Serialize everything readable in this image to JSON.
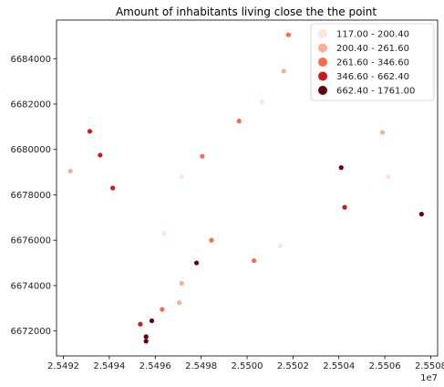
{
  "chart_data": {
    "type": "scatter",
    "title": "Amount of inhabitants living close the the point",
    "xlabel": "",
    "ylabel": "",
    "x_offset_label": "1e7",
    "x_scale": 10000000,
    "xlim": [
      25491700,
      25508300
    ],
    "ylim": [
      6670900,
      6685700
    ],
    "x_ticks": [
      25492000,
      25494000,
      25496000,
      25498000,
      25500000,
      25502000,
      25504000,
      25506000,
      25508000
    ],
    "x_tick_labels": [
      "2.5492",
      "2.5494",
      "2.5496",
      "2.5498",
      "2.5500",
      "2.5502",
      "2.5504",
      "2.5506",
      "2.5508"
    ],
    "y_ticks": [
      6672000,
      6674000,
      6676000,
      6678000,
      6680000,
      6682000,
      6684000
    ],
    "y_tick_labels": [
      "6672000",
      "6674000",
      "6676000",
      "6678000",
      "6680000",
      "6682000",
      "6684000"
    ],
    "grid": false,
    "legend_position": "top-right",
    "classes": [
      {
        "label": "117.00 - 200.40",
        "color": "#fee5d9"
      },
      {
        "label": "200.40 - 261.60",
        "color": "#fcae91"
      },
      {
        "label": "261.60 - 346.60",
        "color": "#fb6a4a"
      },
      {
        "label": "346.60 - 662.40",
        "color": "#cb181d"
      },
      {
        "label": "662.40 - 1761.00",
        "color": "#67000d"
      }
    ],
    "points": [
      {
        "x": 25492300,
        "y": 6679050,
        "cls": 1
      },
      {
        "x": 25493150,
        "y": 6680800,
        "cls": 3
      },
      {
        "x": 25493600,
        "y": 6679750,
        "cls": 3
      },
      {
        "x": 25494150,
        "y": 6678300,
        "cls": 3
      },
      {
        "x": 25495350,
        "y": 6672300,
        "cls": 3
      },
      {
        "x": 25495600,
        "y": 6671750,
        "cls": 4
      },
      {
        "x": 25495600,
        "y": 6671550,
        "cls": 4
      },
      {
        "x": 25495850,
        "y": 6672450,
        "cls": 4
      },
      {
        "x": 25496300,
        "y": 6672950,
        "cls": 2
      },
      {
        "x": 25496400,
        "y": 6676300,
        "cls": 0
      },
      {
        "x": 25497050,
        "y": 6673250,
        "cls": 1
      },
      {
        "x": 25497150,
        "y": 6674100,
        "cls": 1
      },
      {
        "x": 25497150,
        "y": 6678800,
        "cls": 0
      },
      {
        "x": 25497800,
        "y": 6675000,
        "cls": 4
      },
      {
        "x": 25498050,
        "y": 6679700,
        "cls": 2
      },
      {
        "x": 25498450,
        "y": 6676000,
        "cls": 2
      },
      {
        "x": 25499650,
        "y": 6681250,
        "cls": 2
      },
      {
        "x": 25500300,
        "y": 6675100,
        "cls": 2
      },
      {
        "x": 25500650,
        "y": 6682100,
        "cls": 0
      },
      {
        "x": 25501450,
        "y": 6675750,
        "cls": 0
      },
      {
        "x": 25501600,
        "y": 6683450,
        "cls": 1
      },
      {
        "x": 25501800,
        "y": 6685050,
        "cls": 2
      },
      {
        "x": 25504100,
        "y": 6679200,
        "cls": 4
      },
      {
        "x": 25504250,
        "y": 6677450,
        "cls": 3
      },
      {
        "x": 25505900,
        "y": 6680750,
        "cls": 1
      },
      {
        "x": 25506150,
        "y": 6678800,
        "cls": 0
      },
      {
        "x": 25507600,
        "y": 6677150,
        "cls": 4
      }
    ]
  }
}
